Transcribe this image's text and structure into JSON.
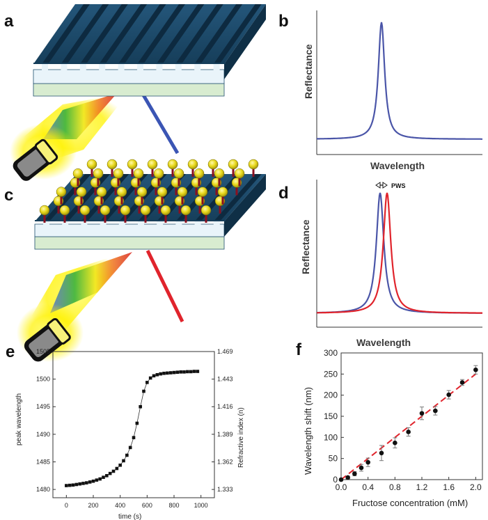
{
  "panels": {
    "a": {
      "letter": "a"
    },
    "b": {
      "letter": "b",
      "ylabel": "Reflectance",
      "xlabel": "Wavelength"
    },
    "c": {
      "letter": "c"
    },
    "d": {
      "letter": "d",
      "ylabel": "Reflectance",
      "xlabel": "Wavelength",
      "annotation": "PWS"
    },
    "e": {
      "letter": "e"
    },
    "f": {
      "letter": "f"
    }
  },
  "colors": {
    "grating": "#1f4e6e",
    "substrate": "#d8ecd0",
    "blue_curve": "#4a55a8",
    "red_curve": "#e0242c",
    "fit_line": "#e0242c"
  },
  "chart_data": [
    {
      "id": "e",
      "type": "scatter",
      "title": "",
      "xlabel": "time (s)",
      "ylabel": "peak wavelength",
      "y2label": "Refractive index (n)",
      "xlim": [
        -100,
        1100
      ],
      "ylim": [
        1478.5,
        1505
      ],
      "xticks": [
        0,
        200,
        400,
        600,
        800,
        1000
      ],
      "yticks": [
        1480,
        1485,
        1490,
        1495,
        1500,
        1505
      ],
      "y2ticks": [
        "1.333",
        "1.362",
        "1.389",
        "1.416",
        "1.443",
        "1.469"
      ],
      "x": [
        0,
        25,
        50,
        75,
        100,
        125,
        150,
        175,
        200,
        225,
        250,
        275,
        300,
        325,
        350,
        375,
        400,
        425,
        450,
        475,
        500,
        525,
        550,
        575,
        600,
        625,
        650,
        675,
        700,
        725,
        750,
        775,
        800,
        825,
        850,
        875,
        900,
        925,
        950,
        975
      ],
      "y": [
        1480.7,
        1480.75,
        1480.8,
        1480.9,
        1481.0,
        1481.1,
        1481.2,
        1481.35,
        1481.5,
        1481.7,
        1481.9,
        1482.2,
        1482.5,
        1482.9,
        1483.3,
        1483.8,
        1484.4,
        1485.2,
        1486.2,
        1487.6,
        1489.4,
        1492.0,
        1495.0,
        1497.8,
        1499.4,
        1500.2,
        1500.6,
        1500.8,
        1500.95,
        1501.05,
        1501.1,
        1501.15,
        1501.2,
        1501.25,
        1501.3,
        1501.3,
        1501.35,
        1501.35,
        1501.4,
        1501.4
      ]
    },
    {
      "id": "f",
      "type": "scatter",
      "title": "",
      "xlabel": "Fructose concentration (mM)",
      "ylabel": "Wavelength shift (nm)",
      "xlim": [
        0,
        2.1
      ],
      "ylim": [
        0,
        300
      ],
      "xticks": [
        "0.0",
        "0.4",
        "0.8",
        "1.2",
        "1.6",
        "2.0"
      ],
      "yticks": [
        0,
        50,
        100,
        150,
        200,
        250,
        300
      ],
      "x": [
        0.0,
        0.1,
        0.2,
        0.3,
        0.4,
        0.6,
        0.8,
        1.0,
        1.2,
        1.4,
        1.6,
        1.8,
        2.0
      ],
      "y": [
        0,
        5,
        14,
        28,
        41,
        63,
        87,
        113,
        157,
        163,
        201,
        230,
        260
      ],
      "err": [
        0,
        3,
        5,
        8,
        10,
        18,
        12,
        10,
        15,
        10,
        10,
        7,
        10
      ],
      "fit": {
        "slope": 125,
        "intercept": 0
      }
    }
  ]
}
